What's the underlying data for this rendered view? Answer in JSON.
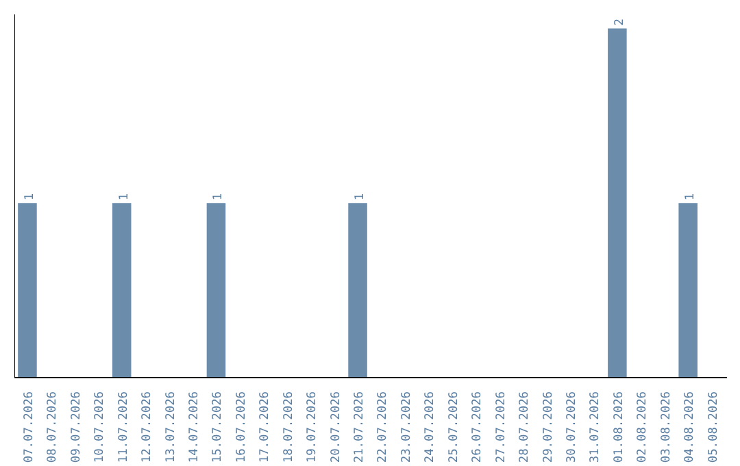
{
  "chart_data": {
    "type": "bar",
    "categories": [
      "07.07.2026",
      "08.07.2026",
      "09.07.2026",
      "10.07.2026",
      "11.07.2026",
      "12.07.2026",
      "13.07.2026",
      "14.07.2026",
      "15.07.2026",
      "16.07.2026",
      "17.07.2026",
      "18.07.2026",
      "19.07.2026",
      "20.07.2026",
      "21.07.2026",
      "22.07.2026",
      "23.07.2026",
      "24.07.2026",
      "25.07.2026",
      "26.07.2026",
      "27.07.2026",
      "28.07.2026",
      "29.07.2026",
      "30.07.2026",
      "31.07.2026",
      "01.08.2026",
      "02.08.2026",
      "03.08.2026",
      "04.08.2026",
      "05.08.2026"
    ],
    "values": [
      1,
      0,
      0,
      0,
      1,
      0,
      0,
      0,
      1,
      0,
      0,
      0,
      0,
      0,
      1,
      0,
      0,
      0,
      0,
      0,
      0,
      0,
      0,
      0,
      0,
      2,
      0,
      0,
      1,
      0
    ],
    "value_labels": [
      "1",
      null,
      null,
      null,
      "1",
      null,
      null,
      null,
      "1",
      null,
      null,
      null,
      null,
      null,
      "1",
      null,
      null,
      null,
      null,
      null,
      null,
      null,
      null,
      null,
      null,
      "2",
      null,
      null,
      "1",
      null
    ],
    "color": "#6b8cab",
    "ylim": [
      0,
      2.08
    ],
    "tick_labels": "x",
    "grid": false
  }
}
